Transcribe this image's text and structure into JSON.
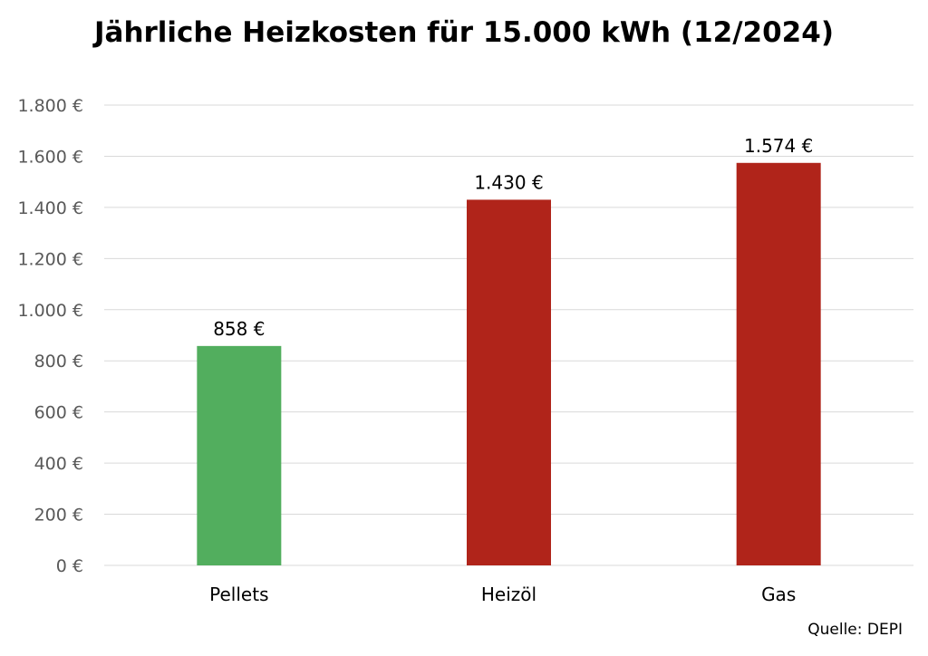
{
  "chart_data": {
    "type": "bar",
    "title": "Jährliche Heizkosten für 15.000 kWh (12/2024)",
    "categories": [
      "Pellets",
      "Heizöl",
      "Gas"
    ],
    "values": [
      858,
      1430,
      1574
    ],
    "data_labels": [
      "858 €",
      "1.430 €",
      "1.574 €"
    ],
    "bar_colors": [
      "#52ae5e",
      "#b0241a",
      "#b0241a"
    ],
    "ylim": [
      0,
      1800
    ],
    "yticks": [
      0,
      200,
      400,
      600,
      800,
      1000,
      1200,
      1400,
      1600,
      1800
    ],
    "ytick_labels": [
      "0 €",
      "200 €",
      "400 €",
      "600 €",
      "800 €",
      "1.000 €",
      "1.200 €",
      "1.400 €",
      "1.600 €",
      "1.800 €"
    ],
    "grid": true,
    "xlabel": "",
    "ylabel": ""
  },
  "source_note": "Quelle: DEPI",
  "colors": {
    "gridline": "#d9d9d9",
    "axis_tick_text": "#595959",
    "text": "#000000"
  }
}
